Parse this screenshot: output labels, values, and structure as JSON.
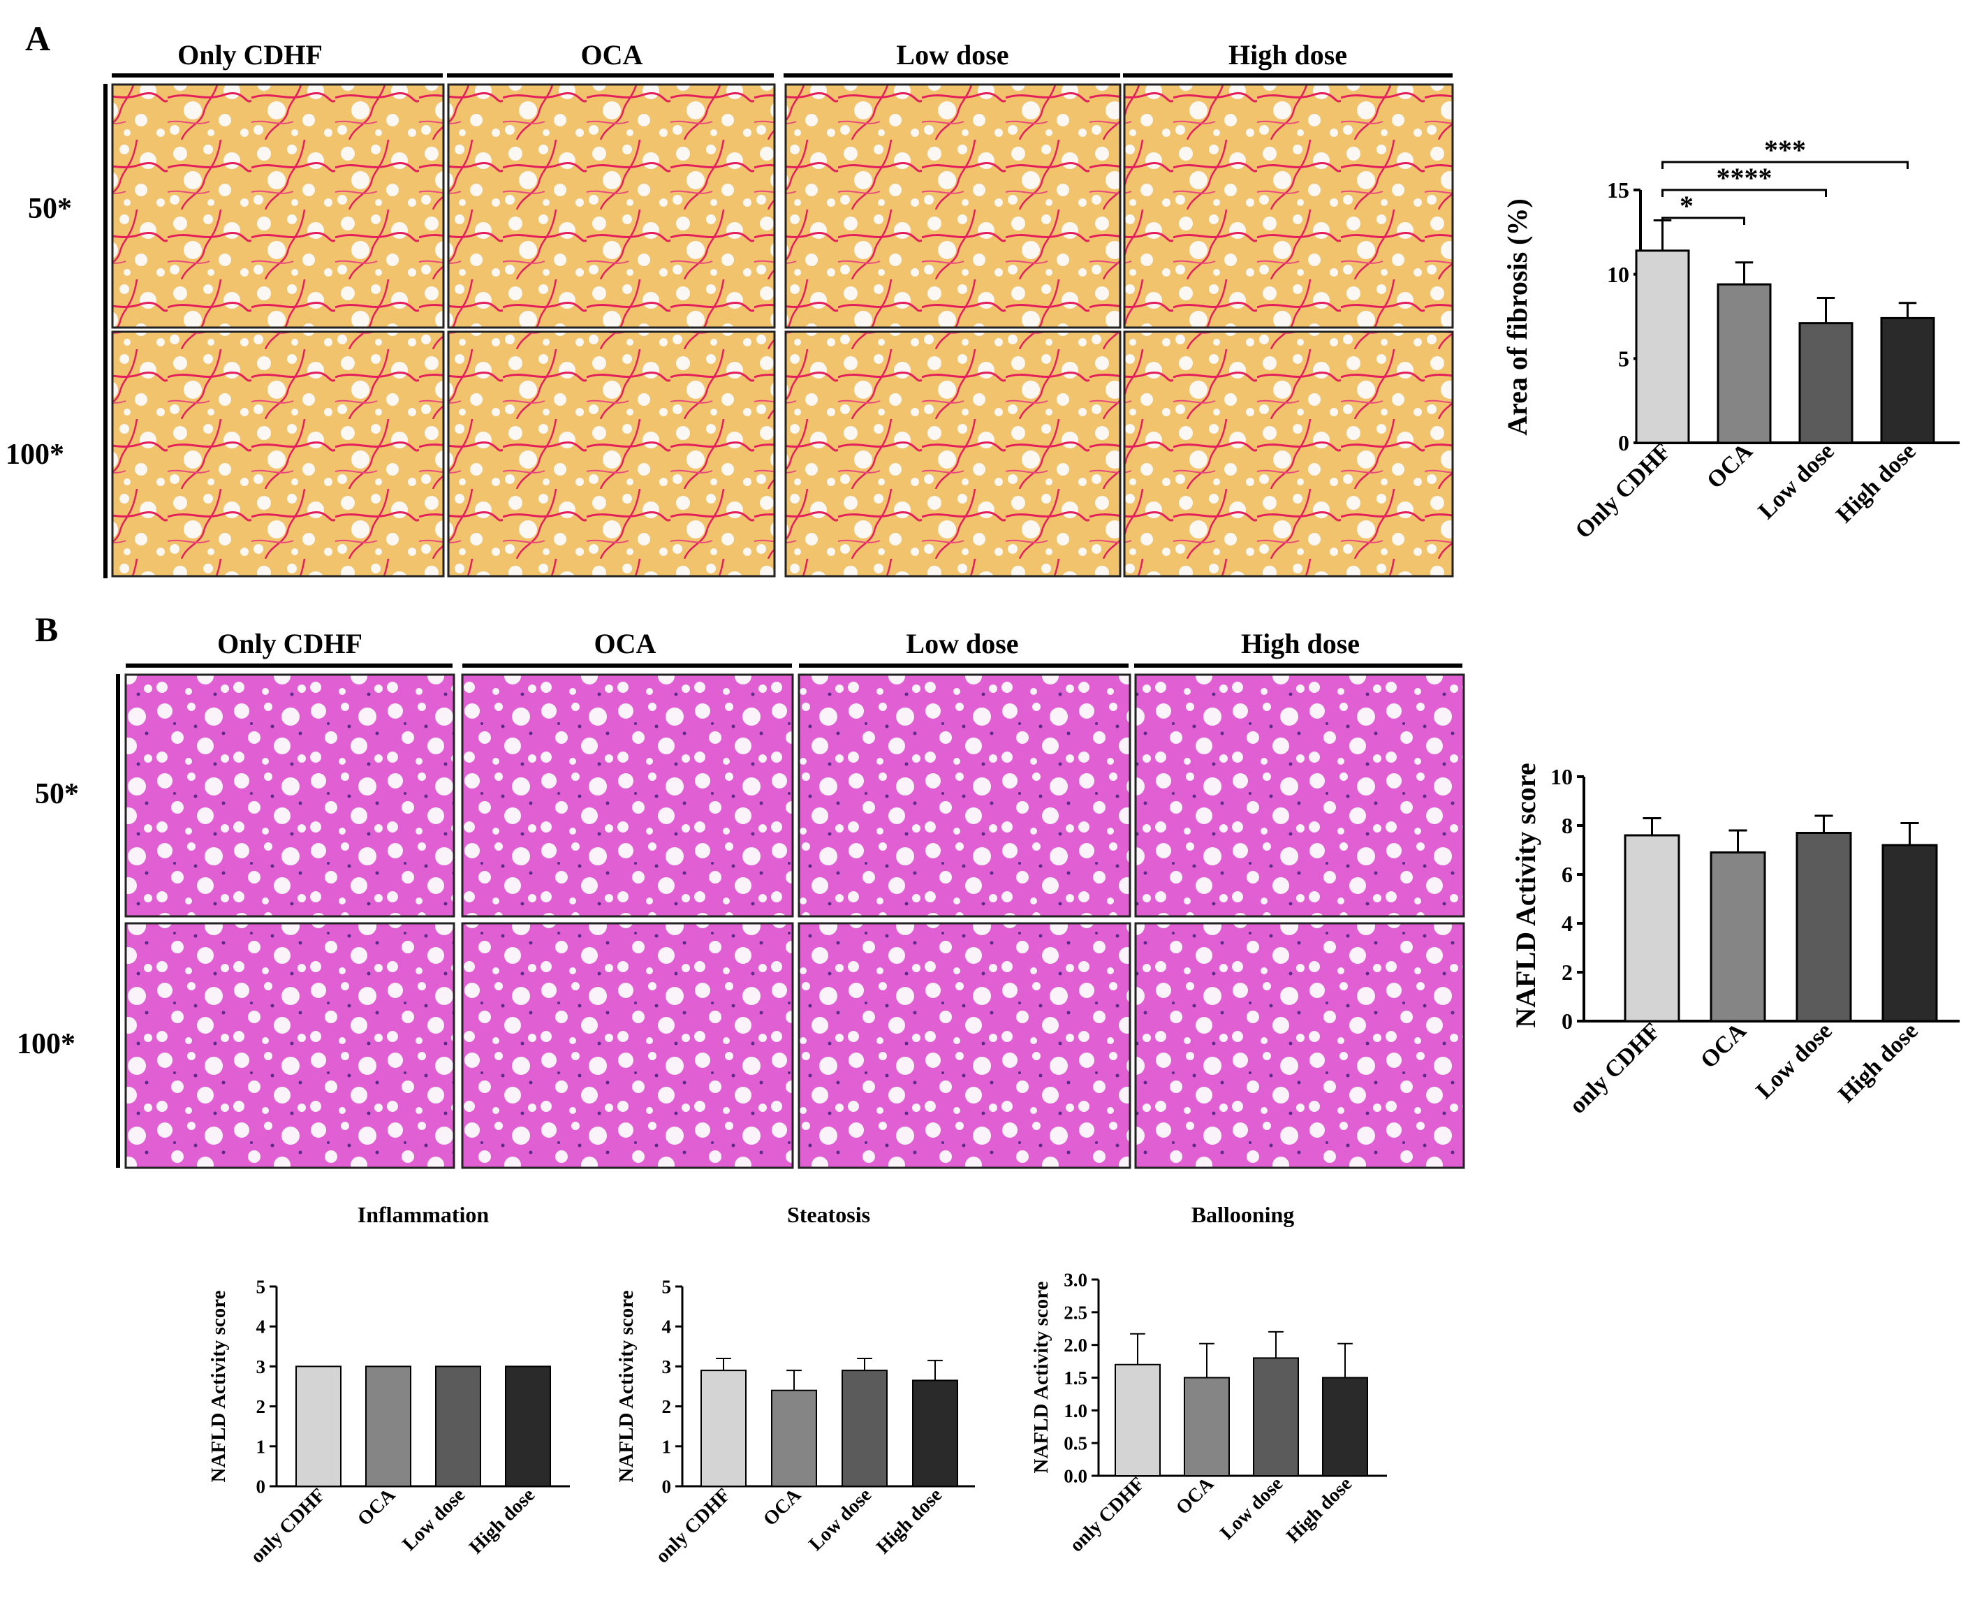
{
  "panels": {
    "a": {
      "letter": "A",
      "groups": [
        "Only CDHF",
        "OCA",
        "Low dose",
        "High dose"
      ],
      "rows": [
        "50*",
        "100*"
      ],
      "stain": "sirius-red"
    },
    "b": {
      "letter": "B",
      "groups": [
        "Only CDHF",
        "OCA",
        "Low dose",
        "High dose"
      ],
      "rows": [
        "50*",
        "100*"
      ],
      "stain": "hematoxylin-eosin"
    }
  },
  "colors": {
    "bar_1": "#d4d4d4",
    "bar_2": "#858585",
    "bar_3": "#5b5b5b",
    "bar_4": "#2a2a2a",
    "sirius_bg": "#f1c36c",
    "sirius_fiber": "#e31e5b",
    "he_bg": "#e05fd2",
    "he_bg_pale": "#d9a6d8",
    "vacuole": "#fbf7fa"
  },
  "chart_data": [
    {
      "id": "fibrosis",
      "type": "bar",
      "title": "",
      "ylabel": "Area of fibrosis (%)",
      "categories": [
        "Only CDHF",
        "OCA",
        "Low dose",
        "High dose"
      ],
      "values": [
        11.4,
        9.4,
        7.1,
        7.4
      ],
      "errors": [
        1.8,
        1.3,
        1.5,
        0.9
      ],
      "ylim": [
        0,
        15
      ],
      "yticks": [
        "0",
        "5",
        "10",
        "15"
      ],
      "significance": [
        {
          "from": 0,
          "to": 1,
          "label": "*"
        },
        {
          "from": 0,
          "to": 2,
          "label": "****"
        },
        {
          "from": 0,
          "to": 3,
          "label": "***"
        }
      ]
    },
    {
      "id": "nafld",
      "type": "bar",
      "title": "",
      "ylabel": "NAFLD Activity score",
      "categories": [
        "only CDHF",
        "OCA",
        "Low dose",
        "High dose"
      ],
      "values": [
        7.6,
        6.9,
        7.7,
        7.2
      ],
      "errors": [
        0.7,
        0.9,
        0.7,
        0.9
      ],
      "ylim": [
        0,
        10
      ],
      "yticks": [
        "0",
        "2",
        "4",
        "6",
        "8",
        "10"
      ]
    },
    {
      "id": "inflammation",
      "type": "bar",
      "title": "Inflammation",
      "ylabel": "NAFLD Activity score",
      "categories": [
        "only CDHF",
        "OCA",
        "Low dose",
        "High dose"
      ],
      "values": [
        3,
        3,
        3,
        3
      ],
      "errors": [
        0,
        0,
        0,
        0
      ],
      "ylim": [
        0,
        5
      ],
      "yticks": [
        "0",
        "1",
        "2",
        "3",
        "4",
        "5"
      ]
    },
    {
      "id": "steatosis",
      "type": "bar",
      "title": "Steatosis",
      "ylabel": "NAFLD Activity score",
      "categories": [
        "only CDHF",
        "OCA",
        "Low dose",
        "High dose"
      ],
      "values": [
        2.9,
        2.4,
        2.9,
        2.65
      ],
      "errors": [
        0.3,
        0.5,
        0.3,
        0.5
      ],
      "ylim": [
        0,
        5
      ],
      "yticks": [
        "0",
        "1",
        "2",
        "3",
        "4",
        "5"
      ]
    },
    {
      "id": "ballooning",
      "type": "bar",
      "title": "Ballooning",
      "ylabel": "NAFLD Activity score",
      "categories": [
        "only CDHF",
        "OCA",
        "Low dose",
        "High dose"
      ],
      "values": [
        1.7,
        1.5,
        1.8,
        1.5
      ],
      "errors": [
        0.47,
        0.52,
        0.4,
        0.52
      ],
      "ylim": [
        0,
        3
      ],
      "yticks": [
        "0.0",
        "0.5",
        "1.0",
        "1.5",
        "2.0",
        "2.5",
        "3.0"
      ]
    }
  ]
}
